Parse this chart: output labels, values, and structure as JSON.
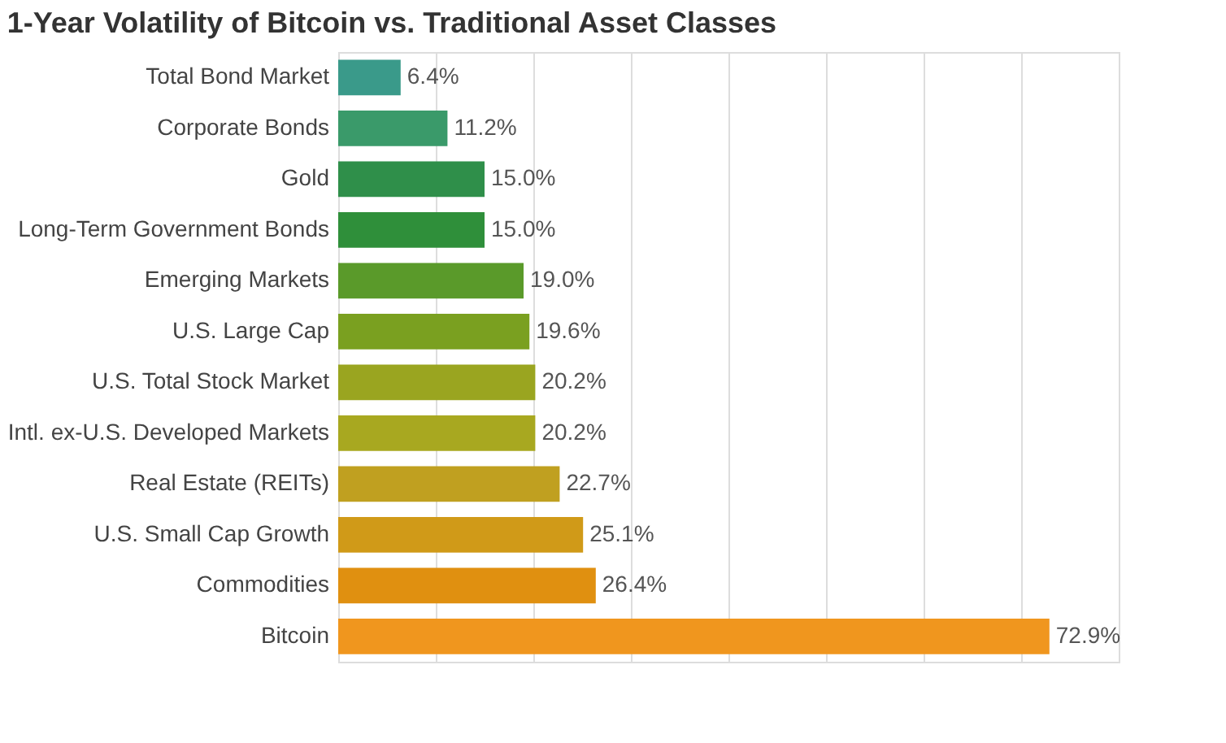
{
  "chart_data": {
    "type": "bar",
    "orientation": "horizontal",
    "title": "1-Year Volatility of Bitcoin vs. Traditional Asset Classes",
    "categories": [
      "Total Bond Market",
      "Corporate Bonds",
      "Gold",
      "Long-Term Government Bonds",
      "Emerging Markets",
      "U.S. Large Cap",
      "U.S. Total Stock Market",
      "Intl. ex-U.S. Developed Markets",
      "Real Estate (REITs)",
      "U.S. Small Cap Growth",
      "Commodities",
      "Bitcoin"
    ],
    "values": [
      6.4,
      11.2,
      15.0,
      15.0,
      19.0,
      19.6,
      20.2,
      20.2,
      22.7,
      25.1,
      26.4,
      72.9
    ],
    "value_labels": [
      "6.4%",
      "11.2%",
      "15.0%",
      "15.0%",
      "19.0%",
      "19.6%",
      "20.2%",
      "20.2%",
      "22.7%",
      "25.1%",
      "26.4%",
      "72.9%"
    ],
    "colors": [
      "#3a9a8a",
      "#3a9a6a",
      "#2f8f4a",
      "#2f8f3a",
      "#5a9a2a",
      "#7aa020",
      "#9aa520",
      "#a8a820",
      "#c0a020",
      "#d09a18",
      "#e09010",
      "#f0961e"
    ],
    "xlim": [
      0,
      80
    ],
    "xticks": [
      {
        "value": 0,
        "label": null
      },
      {
        "value": 10,
        "label": null
      },
      {
        "value": 20,
        "label": null
      },
      {
        "value": 30,
        "label": null
      },
      {
        "value": 40,
        "label": null
      },
      {
        "value": 50,
        "label": null
      },
      {
        "value": 60,
        "label": null
      },
      {
        "value": 70,
        "label": null
      },
      {
        "value": 80,
        "label": null
      }
    ],
    "grid": "x",
    "tick_labels": "y"
  }
}
